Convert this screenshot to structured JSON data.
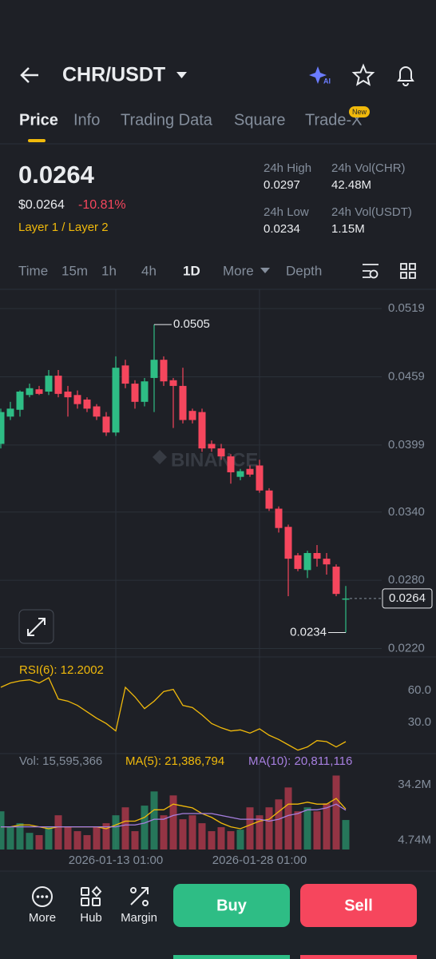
{
  "header": {
    "pair": "CHR/USDT"
  },
  "tabs": [
    "Price",
    "Info",
    "Trading Data",
    "Square",
    "Trade-X"
  ],
  "tab_badge": "New",
  "ticker": {
    "price": "0.0264",
    "price_usd": "$0.0264",
    "change": "-10.81%",
    "tags": "Layer 1 / Layer 2",
    "stats": [
      {
        "label": "24h High",
        "value": "0.0297"
      },
      {
        "label": "24h Vol(CHR)",
        "value": "42.48M"
      },
      {
        "label": "24h Low",
        "value": "0.0234"
      },
      {
        "label": "24h Vol(USDT)",
        "value": "1.15M"
      }
    ]
  },
  "intervals": [
    "Time",
    "15m",
    "1h",
    "4h",
    "1D",
    "More",
    "Depth"
  ],
  "watermark": "BINANCE",
  "chart_data": [
    {
      "type": "candlestick",
      "open": [
        0.04,
        0.0424,
        0.043,
        0.0443,
        0.0448,
        0.0446,
        0.046,
        0.0446,
        0.0443,
        0.0439,
        0.0433,
        0.0424,
        0.041,
        0.0469,
        0.0453,
        0.0437,
        0.0458,
        0.0474,
        0.0456,
        0.0451,
        0.0429,
        0.0428,
        0.04,
        0.0396,
        0.0389,
        0.0371,
        0.0378,
        0.0381,
        0.0359,
        0.0343,
        0.0327,
        0.0302,
        0.0289,
        0.0304,
        0.0299,
        0.0292,
        0.0263
      ],
      "high": [
        0.0431,
        0.0437,
        0.0447,
        0.0453,
        0.0451,
        0.0465,
        0.0465,
        0.0451,
        0.0447,
        0.0441,
        0.0435,
        0.0428,
        0.0477,
        0.0474,
        0.0456,
        0.0458,
        0.0505,
        0.0477,
        0.0458,
        0.0467,
        0.0431,
        0.0431,
        0.0403,
        0.04,
        0.0391,
        0.0378,
        0.0381,
        0.0386,
        0.0361,
        0.0345,
        0.0329,
        0.0304,
        0.0306,
        0.0311,
        0.0304,
        0.0294,
        0.0275
      ],
      "low": [
        0.0396,
        0.0421,
        0.0424,
        0.0441,
        0.0443,
        0.0443,
        0.0441,
        0.0424,
        0.0431,
        0.0428,
        0.0421,
        0.0407,
        0.0407,
        0.0449,
        0.0431,
        0.0433,
        0.0428,
        0.0451,
        0.0414,
        0.0418,
        0.0418,
        0.0393,
        0.0393,
        0.0386,
        0.0365,
        0.0368,
        0.0371,
        0.0357,
        0.0341,
        0.0322,
        0.0266,
        0.0288,
        0.0282,
        0.0292,
        0.0285,
        0.0266,
        0.0234
      ],
      "close": [
        0.0428,
        0.0431,
        0.0446,
        0.0449,
        0.0444,
        0.046,
        0.0444,
        0.0441,
        0.0435,
        0.0431,
        0.0424,
        0.041,
        0.0467,
        0.0453,
        0.0437,
        0.0455,
        0.0474,
        0.0455,
        0.0451,
        0.0421,
        0.0421,
        0.0396,
        0.0396,
        0.0389,
        0.0375,
        0.0376,
        0.0373,
        0.0359,
        0.0343,
        0.0326,
        0.0299,
        0.029,
        0.0304,
        0.0299,
        0.0294,
        0.0268,
        0.0264
      ],
      "up_color": "#2ebd85",
      "down_color": "#f6465d",
      "ylim": [
        0.0214,
        0.0536
      ],
      "yticks": [
        0.0519,
        0.0459,
        0.0399,
        {
          "value": 0.034,
          "label": "0.0340"
        },
        {
          "value": 0.028,
          "label": "0.0280"
        },
        {
          "value": 0.022,
          "label": "0.0220"
        }
      ],
      "grid": true
    },
    {
      "type": "line",
      "title": "RSI(6): 12.2002",
      "series": [
        {
          "color": "#f0b90b",
          "values": [
            63,
            67,
            69,
            70,
            67,
            72,
            52,
            50,
            46,
            40,
            34,
            29,
            22,
            63,
            54,
            43,
            50,
            59,
            61,
            46,
            44,
            37,
            29,
            25,
            22,
            23,
            20,
            24,
            18,
            14,
            9,
            4,
            7,
            13,
            12,
            7,
            12
          ]
        }
      ],
      "ylim": [
        1.5,
        88.5
      ],
      "yticks": [
        {
          "value": 60,
          "label": "60.0"
        },
        {
          "value": 30,
          "label": "30.0"
        }
      ]
    },
    {
      "type": "bar",
      "title": "Vol: 15,595,366",
      "categories": [
        null,
        null,
        null,
        null,
        null,
        null,
        null,
        null,
        null,
        null,
        null,
        null,
        "2026-01-13 01:00",
        null,
        null,
        null,
        null,
        null,
        null,
        null,
        null,
        null,
        null,
        null,
        null,
        null,
        null,
        "2026-01-28 01:00",
        null,
        null,
        null,
        null,
        null,
        null,
        null,
        null,
        null
      ],
      "values": [
        20200000,
        11800000,
        13900000,
        8800000,
        7600000,
        11800000,
        18100000,
        11800000,
        9700000,
        7600000,
        11800000,
        13900000,
        18100000,
        22300000,
        9700000,
        23200000,
        30700000,
        18100000,
        28600000,
        16000000,
        18100000,
        13900000,
        9700000,
        11800000,
        9700000,
        10500000,
        22300000,
        18100000,
        22300000,
        26500000,
        32800000,
        20200000,
        22300000,
        20200000,
        24400000,
        39100000,
        15600000
      ],
      "series": [
        {
          "name": "MA(5): 21,386,794",
          "color": "#f0b90b",
          "values": [
            12000000,
            12000000,
            13000000,
            13000000,
            12000000,
            11000000,
            12000000,
            12000000,
            12000000,
            12000000,
            12000000,
            11000000,
            13000000,
            15000000,
            15000000,
            17000000,
            21000000,
            21000000,
            24000000,
            23000000,
            22000000,
            19000000,
            17000000,
            14000000,
            12000000,
            11000000,
            13000000,
            15000000,
            16000000,
            20000000,
            24000000,
            24000000,
            25000000,
            24000000,
            24000000,
            27000000,
            21400000
          ]
        },
        {
          "name": "MA(10): 20,811,116",
          "color": "#a77fe0",
          "values": [
            12000000,
            12000000,
            12000000,
            12000000,
            12000000,
            12000000,
            12000000,
            12000000,
            12000000,
            12000000,
            12000000,
            12000000,
            12000000,
            13000000,
            13000000,
            14000000,
            16000000,
            16000000,
            18000000,
            19000000,
            19000000,
            19000000,
            19000000,
            18000000,
            17000000,
            16000000,
            16000000,
            16000000,
            15000000,
            16000000,
            18000000,
            19000000,
            21000000,
            21000000,
            22000000,
            24000000,
            20800000
          ]
        }
      ],
      "ylim": [
        0,
        41400000
      ],
      "yticks": [
        {
          "value": 34200000,
          "label": "34.2M"
        },
        {
          "value": 4740000,
          "label": "4.74M"
        }
      ]
    }
  ],
  "bottom_bar": {
    "items": [
      "More",
      "Hub",
      "Margin"
    ],
    "buy": "Buy",
    "sell": "Sell"
  }
}
